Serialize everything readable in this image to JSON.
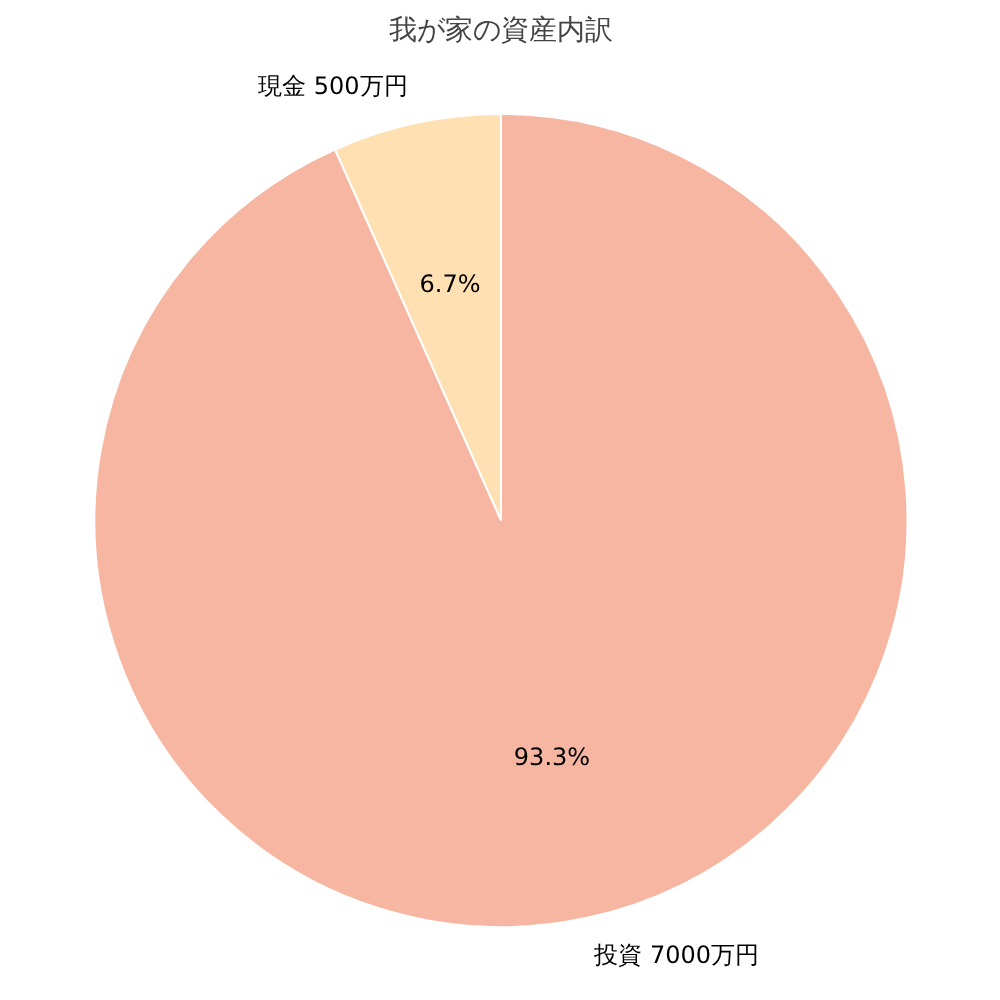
{
  "chart_data": {
    "type": "pie",
    "title": "我が家の資産内訳",
    "categories": [
      "現金 500万円",
      "投資 7000万円"
    ],
    "values": [
      6.7,
      93.3
    ],
    "value_labels": [
      "6.7%",
      "93.3%"
    ],
    "colors": [
      "#ffe0b2",
      "#f7b6a2"
    ]
  }
}
